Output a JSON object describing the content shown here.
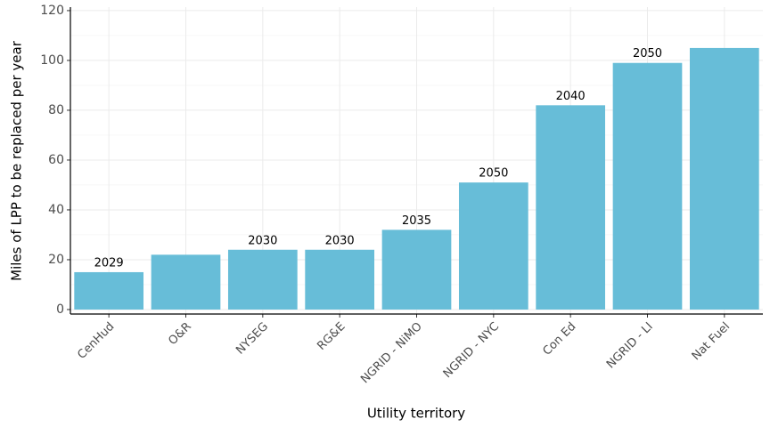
{
  "chart_data": {
    "type": "bar",
    "x_label": "Utility territory",
    "y_label": "Miles of LPP to be replaced per year",
    "categories": [
      "CenHud",
      "O&R",
      "NYSEG",
      "RG&E",
      "NGRID - NiMO",
      "NGRID - NYC",
      "Con Ed",
      "NGRID - LI",
      "Nat Fuel"
    ],
    "values": [
      15,
      22,
      24,
      24,
      32,
      51,
      82,
      99,
      105
    ],
    "bar_labels": [
      "2029",
      null,
      "2030",
      "2030",
      "2035",
      "2050",
      "2040",
      "2050",
      null
    ],
    "color": "#67bdd8",
    "ylim": [
      -1.8,
      121.4
    ],
    "yticks": [
      0,
      20,
      40,
      60,
      80,
      100,
      120
    ],
    "yminor": [
      10,
      30,
      50,
      70,
      90,
      110
    ],
    "grid": true
  }
}
